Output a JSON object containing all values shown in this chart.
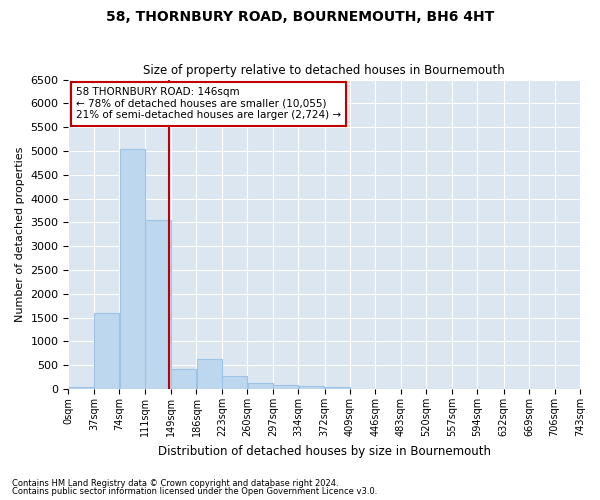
{
  "title_line1": "58, THORNBURY ROAD, BOURNEMOUTH, BH6 4HT",
  "title_line2": "Size of property relative to detached houses in Bournemouth",
  "xlabel": "Distribution of detached houses by size in Bournemouth",
  "ylabel": "Number of detached properties",
  "footnote1": "Contains HM Land Registry data © Crown copyright and database right 2024.",
  "footnote2": "Contains public sector information licensed under the Open Government Licence v3.0.",
  "annotation_line1": "58 THORNBURY ROAD: 146sqm",
  "annotation_line2": "← 78% of detached houses are smaller (10,055)",
  "annotation_line3": "21% of semi-detached houses are larger (2,724) →",
  "bin_labels": [
    "0sqm",
    "37sqm",
    "74sqm",
    "111sqm",
    "149sqm",
    "186sqm",
    "223sqm",
    "260sqm",
    "297sqm",
    "334sqm",
    "372sqm",
    "409sqm",
    "446sqm",
    "483sqm",
    "520sqm",
    "557sqm",
    "594sqm",
    "632sqm",
    "669sqm",
    "706sqm",
    "743sqm"
  ],
  "bin_edges": [
    0,
    37,
    74,
    111,
    149,
    186,
    223,
    260,
    297,
    334,
    372,
    409,
    446,
    483,
    520,
    557,
    594,
    632,
    669,
    706,
    743
  ],
  "bar_heights": [
    50,
    1600,
    5050,
    3550,
    430,
    630,
    270,
    120,
    80,
    60,
    50,
    0,
    0,
    0,
    0,
    0,
    0,
    0,
    0,
    0
  ],
  "bar_color": "#BDD7EE",
  "bar_edge_color": "#9DC3E6",
  "vline_color": "#C00000",
  "vline_x": 146,
  "ylim": [
    0,
    6500
  ],
  "yticks": [
    0,
    500,
    1000,
    1500,
    2000,
    2500,
    3000,
    3500,
    4000,
    4500,
    5000,
    5500,
    6000,
    6500
  ],
  "bg_color": "#DCE6F1",
  "grid_color": "#FFFFFF"
}
